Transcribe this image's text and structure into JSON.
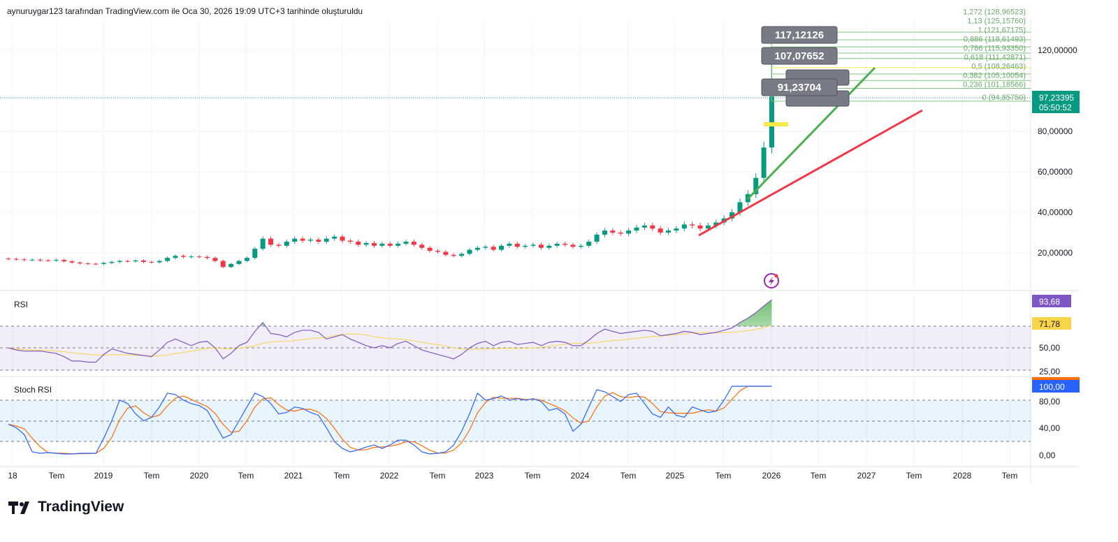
{
  "header": {
    "attribution": "aynuruygar123 tarafından TradingView.com ile Oca 30, 2026 19:09 UTC+3 tarihinde oluşturuldu"
  },
  "brand": {
    "name": "TradingView"
  },
  "colors": {
    "up": "#089981",
    "down": "#f23645",
    "rsi": "#7e57c2",
    "rsi_ma": "#f7d44a",
    "stoch_k": "#2962ff",
    "stoch_d": "#ff6d00",
    "trend_green": "#4caf50",
    "trend_red": "#f23645"
  },
  "price_axis": {
    "labels": [
      "120,00000",
      "80,00000",
      "60,00000",
      "40,00000",
      "20,00000"
    ],
    "last_price": "97,23395",
    "countdown": "05:50:52"
  },
  "callouts": [
    "117,12126",
    "107,07652",
    "91,23704"
  ],
  "fib_levels": [
    {
      "label": "1,272 (128,96523)",
      "price": 128.96523
    },
    {
      "label": "1,13 (125,15760)",
      "price": 125.1576
    },
    {
      "label": "1 (121,67175)",
      "price": 121.67175
    },
    {
      "label": "0,886 (118,61493)",
      "price": 118.61493
    },
    {
      "label": "0,786 (115,93350)",
      "price": 115.9335
    },
    {
      "label": "0,618 (111,42871)",
      "price": 111.42871
    },
    {
      "label": "0,5 (108,26463)",
      "price": 108.26463
    },
    {
      "label": "0,382 (105,10054)",
      "price": 105.10054
    },
    {
      "label": "0,236 (101,18566)",
      "price": 101.18566
    },
    {
      "label": "0 (94,85750)",
      "price": 94.8575
    }
  ],
  "time_axis": [
    "18",
    "Tem",
    "2019",
    "Tem",
    "2020",
    "Tem",
    "2021",
    "Tem",
    "2022",
    "Tem",
    "2023",
    "Tem",
    "2024",
    "Tem",
    "2025",
    "Tem",
    "2026",
    "Tem",
    "2027",
    "Tem",
    "2028",
    "Tem"
  ],
  "rsi_pane": {
    "title": "RSI",
    "value": "93,68",
    "ma_value": "71,78",
    "axis": [
      "50,00",
      "25,00"
    ]
  },
  "stoch_pane": {
    "title": "Stoch RSI",
    "value": "100,00",
    "axis": [
      "80,00",
      "40,00",
      "0,00"
    ]
  },
  "chart_data": {
    "type": "candlestick",
    "interval": "monthly",
    "start": "2018-01",
    "closes": [
      17,
      16.8,
      16.5,
      16.6,
      16.3,
      16.2,
      16.5,
      15.8,
      15.2,
      14.8,
      14.6,
      14.5,
      15,
      15.5,
      16,
      15.8,
      16.2,
      15.5,
      15.3,
      16,
      17.5,
      18.5,
      18,
      18.2,
      18,
      17.5,
      16,
      13,
      14.5,
      16,
      17.5,
      22,
      27,
      24,
      23.5,
      25.5,
      27,
      26,
      26.5,
      25.5,
      27,
      28,
      26,
      25.5,
      24,
      24.8,
      23.5,
      24.5,
      23.5,
      24.5,
      25.5,
      24,
      22.5,
      21,
      20.5,
      19,
      18.5,
      19.5,
      21.5,
      22.5,
      23,
      21.5,
      23.5,
      24.5,
      23,
      23.5,
      24,
      22.5,
      23.5,
      24.5,
      24,
      23,
      23.5,
      25.5,
      29,
      31,
      30,
      29.5,
      31,
      32.5,
      33.5,
      32,
      30,
      31,
      32,
      34,
      33.5,
      32,
      33.5,
      35,
      37,
      40,
      45,
      49,
      57,
      72,
      97.23395
    ],
    "last_high": 117.12126,
    "rsi": [
      50,
      48,
      47,
      47,
      47,
      46,
      45,
      42,
      38,
      38,
      37,
      37,
      44,
      49,
      47,
      45,
      44,
      43,
      42,
      48,
      55,
      58,
      55,
      52,
      55,
      56,
      50,
      40,
      45,
      52,
      55,
      65,
      73,
      63,
      62,
      60,
      64,
      66,
      66,
      64,
      58,
      60,
      62,
      58,
      55,
      52,
      50,
      52,
      50,
      54,
      56,
      52,
      48,
      46,
      44,
      42,
      40,
      44,
      50,
      54,
      56,
      52,
      55,
      56,
      53,
      54,
      55,
      52,
      55,
      56,
      55,
      52,
      52,
      57,
      63,
      67,
      65,
      63,
      64,
      65,
      66,
      65,
      61,
      62,
      63,
      65,
      64,
      62,
      63,
      64,
      66,
      68,
      73,
      77,
      82,
      88,
      93.68
    ],
    "stoch_k": [
      45,
      40,
      30,
      5,
      3,
      4,
      3,
      2,
      2,
      3,
      3,
      3,
      25,
      50,
      80,
      75,
      60,
      50,
      55,
      70,
      90,
      88,
      80,
      75,
      72,
      65,
      45,
      25,
      30,
      50,
      70,
      90,
      85,
      75,
      60,
      62,
      70,
      68,
      62,
      58,
      40,
      20,
      10,
      5,
      8,
      12,
      15,
      10,
      15,
      22,
      22,
      15,
      5,
      2,
      3,
      5,
      15,
      35,
      60,
      90,
      80,
      82,
      86,
      80,
      82,
      80,
      82,
      78,
      65,
      68,
      60,
      35,
      45,
      70,
      95,
      92,
      85,
      78,
      88,
      90,
      75,
      60,
      55,
      70,
      58,
      55,
      70,
      66,
      62,
      64,
      80,
      100,
      100,
      100,
      100,
      100,
      100
    ],
    "price_ylim": [
      10,
      130
    ],
    "trendlines": [
      "green support",
      "red support"
    ]
  }
}
